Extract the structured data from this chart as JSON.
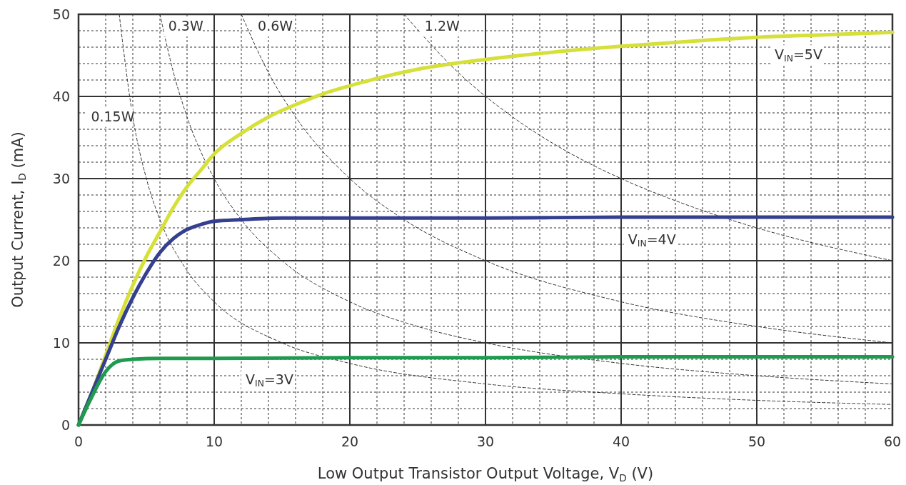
{
  "chart_data": {
    "type": "line",
    "xlabel": "Low Output Transistor Output Voltage, V$_{D}$ (V)",
    "ylabel": "Output Current, I$_{D}$ (mA)",
    "xlim": [
      0,
      60
    ],
    "ylim": [
      0,
      50
    ],
    "xticks": [
      0,
      {
        "value": 2,
        "label": null
      },
      {
        "value": 4,
        "label": null
      },
      {
        "value": 6,
        "label": null
      },
      {
        "value": 8,
        "label": null
      },
      10,
      {
        "value": 12,
        "label": null
      },
      {
        "value": 14,
        "label": null
      },
      {
        "value": 16,
        "label": null
      },
      {
        "value": 18,
        "label": null
      },
      20,
      {
        "value": 22,
        "label": null
      },
      {
        "value": 24,
        "label": null
      },
      {
        "value": 26,
        "label": null
      },
      {
        "value": 28,
        "label": null
      },
      30,
      {
        "value": 32,
        "label": null
      },
      {
        "value": 34,
        "label": null
      },
      {
        "value": 36,
        "label": null
      },
      {
        "value": 38,
        "label": null
      },
      40,
      {
        "value": 42,
        "label": null
      },
      {
        "value": 44,
        "label": null
      },
      {
        "value": 46,
        "label": null
      },
      {
        "value": 48,
        "label": null
      },
      50,
      {
        "value": 52,
        "label": null
      },
      {
        "value": 54,
        "label": null
      },
      {
        "value": 56,
        "label": null
      },
      {
        "value": 58,
        "label": null
      },
      60
    ],
    "yticks": [
      0,
      {
        "value": 2,
        "label": null
      },
      {
        "value": 4,
        "label": null
      },
      {
        "value": 6,
        "label": null
      },
      {
        "value": 8,
        "label": null
      },
      10,
      {
        "value": 12,
        "label": null
      },
      {
        "value": 14,
        "label": null
      },
      {
        "value": 16,
        "label": null
      },
      {
        "value": 18,
        "label": null
      },
      20,
      {
        "value": 22,
        "label": null
      },
      {
        "value": 24,
        "label": null
      },
      {
        "value": 26,
        "label": null
      },
      {
        "value": 28,
        "label": null
      },
      30,
      {
        "value": 32,
        "label": null
      },
      {
        "value": 34,
        "label": null
      },
      {
        "value": 36,
        "label": null
      },
      {
        "value": 38,
        "label": null
      },
      40,
      {
        "value": 42,
        "label": null
      },
      {
        "value": 44,
        "label": null
      },
      {
        "value": 46,
        "label": null
      },
      {
        "value": 48,
        "label": null
      },
      50
    ],
    "grid": true,
    "series": [
      {
        "name": "0.15W",
        "color": "#333333",
        "line_style": "dashed",
        "x": [
          3,
          4,
          5,
          6,
          8,
          10,
          15,
          20,
          30,
          40,
          50,
          60
        ],
        "values": [
          50,
          37.5,
          30,
          25,
          18.8,
          15,
          10,
          7.5,
          5,
          3.8,
          3,
          2.5
        ]
      },
      {
        "name": "0.3W",
        "color": "#333333",
        "line_style": "dashed",
        "x": [
          6,
          7,
          8,
          10,
          12,
          15,
          20,
          25,
          30,
          40,
          50,
          60
        ],
        "values": [
          50,
          42.9,
          37.5,
          30,
          25,
          20,
          15,
          12,
          10,
          7.5,
          6,
          5
        ]
      },
      {
        "name": "0.6W",
        "color": "#333333",
        "line_style": "dashed",
        "x": [
          12,
          14,
          16,
          20,
          24,
          30,
          40,
          50,
          60
        ],
        "values": [
          50,
          42.9,
          37.5,
          30,
          25,
          20,
          15,
          12,
          10
        ]
      },
      {
        "name": "1.2W",
        "color": "#333333",
        "line_style": "dashed",
        "x": [
          24,
          28,
          32,
          36,
          40,
          45,
          50,
          60
        ],
        "values": [
          50,
          42.9,
          37.5,
          33.3,
          30,
          26.7,
          24,
          20
        ]
      },
      {
        "name": "V$_{IN}$=5V",
        "color": "#d6e03a",
        "line_style": "solid",
        "x": [
          0,
          1,
          2,
          3,
          4,
          5,
          6,
          7,
          8,
          9,
          10,
          12,
          14,
          16,
          18,
          20,
          25,
          30,
          35,
          40,
          45,
          50,
          55,
          60
        ],
        "values": [
          0,
          4,
          8.5,
          13,
          17,
          20.5,
          23.5,
          26.5,
          29,
          31,
          33,
          35.5,
          37.5,
          39,
          40.3,
          41.3,
          43.3,
          44.5,
          45.4,
          46.1,
          46.7,
          47.2,
          47.5,
          47.8
        ]
      },
      {
        "name": "V$_{IN}$=4V",
        "color": "#343f8f",
        "line_style": "solid",
        "x": [
          0,
          1,
          2,
          3,
          4,
          5,
          6,
          7,
          8,
          9,
          10,
          12,
          15,
          20,
          30,
          40,
          50,
          60
        ],
        "values": [
          0,
          4,
          8,
          12,
          15.5,
          18.5,
          21,
          22.7,
          23.8,
          24.4,
          24.8,
          25,
          25.2,
          25.2,
          25.2,
          25.3,
          25.3,
          25.3
        ]
      },
      {
        "name": "V$_{IN}$=3V",
        "color": "#1f9a4e",
        "line_style": "solid",
        "x": [
          0,
          1,
          2,
          3,
          4,
          6,
          10,
          20,
          30,
          40,
          50,
          60
        ],
        "values": [
          0,
          3.5,
          6.5,
          7.8,
          8,
          8.1,
          8.1,
          8.2,
          8.2,
          8.3,
          8.3,
          8.3
        ]
      }
    ]
  }
}
